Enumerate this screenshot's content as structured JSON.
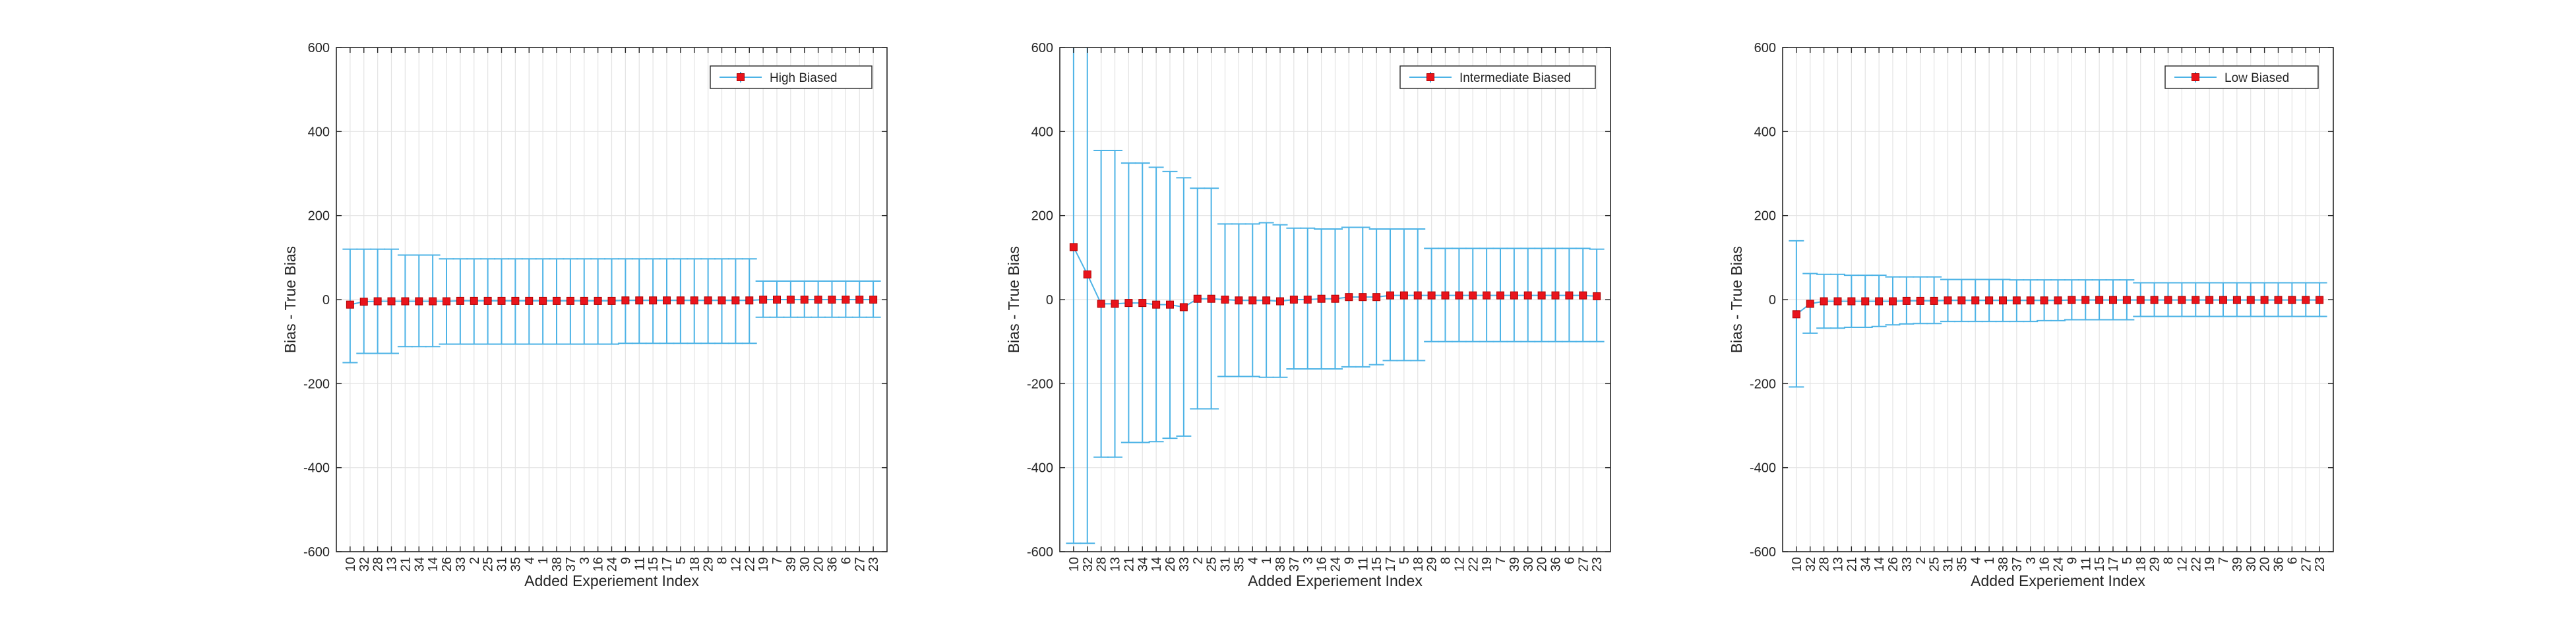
{
  "chart_data": [
    {
      "type": "scatter",
      "title": "",
      "xlabel": "Added Experiement Index",
      "ylabel": "Bias - True Bias",
      "ylim": [
        -600,
        600
      ],
      "yticks": [
        600,
        400,
        200,
        0,
        -200,
        -400,
        -600
      ],
      "grid": true,
      "legend_position": "top-right",
      "categories": [
        "10",
        "32",
        "28",
        "13",
        "21",
        "34",
        "14",
        "26",
        "33",
        "2",
        "25",
        "31",
        "35",
        "4",
        "1",
        "38",
        "37",
        "3",
        "16",
        "24",
        "9",
        "11",
        "15",
        "17",
        "5",
        "18",
        "29",
        "8",
        "12",
        "22",
        "19",
        "7",
        "39",
        "30",
        "20",
        "36",
        "6",
        "27",
        "23"
      ],
      "series": [
        {
          "name": "High Biased",
          "values": [
            -12,
            -5,
            -4,
            -4,
            -4,
            -4,
            -4,
            -4,
            -3,
            -3,
            -3,
            -3,
            -3,
            -3,
            -3,
            -3,
            -3,
            -3,
            -3,
            -3,
            -2,
            -2,
            -2,
            -2,
            -2,
            -2,
            -2,
            -2,
            -2,
            -2,
            0,
            0,
            0,
            0,
            0,
            0,
            0,
            0,
            0
          ],
          "err_upper": [
            120,
            120,
            120,
            120,
            106,
            106,
            106,
            97,
            97,
            97,
            97,
            97,
            97,
            97,
            97,
            97,
            97,
            97,
            97,
            97,
            97,
            97,
            97,
            97,
            97,
            97,
            97,
            97,
            97,
            97,
            44,
            44,
            44,
            44,
            44,
            44,
            44,
            44,
            44
          ],
          "err_lower": [
            -150,
            -128,
            -128,
            -128,
            -112,
            -112,
            -112,
            -106,
            -106,
            -106,
            -106,
            -106,
            -106,
            -106,
            -106,
            -106,
            -106,
            -106,
            -106,
            -106,
            -104,
            -104,
            -104,
            -104,
            -104,
            -104,
            -104,
            -104,
            -104,
            -104,
            -42,
            -42,
            -42,
            -42,
            -42,
            -42,
            -42,
            -42,
            -42
          ]
        }
      ]
    },
    {
      "type": "scatter",
      "title": "",
      "xlabel": "Added Experiement Index",
      "ylabel": "Bias - True Bias",
      "ylim": [
        -600,
        600
      ],
      "yticks": [
        600,
        400,
        200,
        0,
        -200,
        -400,
        -600
      ],
      "grid": true,
      "legend_position": "top-right",
      "categories": [
        "10",
        "32",
        "28",
        "13",
        "21",
        "34",
        "14",
        "26",
        "33",
        "2",
        "25",
        "31",
        "35",
        "4",
        "1",
        "38",
        "37",
        "3",
        "16",
        "24",
        "9",
        "11",
        "15",
        "17",
        "5",
        "18",
        "29",
        "8",
        "12",
        "22",
        "19",
        "7",
        "39",
        "30",
        "20",
        "36",
        "6",
        "27",
        "23"
      ],
      "series": [
        {
          "name": "Intermediate Biased",
          "values": [
            125,
            60,
            -10,
            -10,
            -8,
            -8,
            -12,
            -12,
            -18,
            2,
            2,
            0,
            -2,
            -2,
            -2,
            -4,
            0,
            0,
            2,
            2,
            6,
            6,
            6,
            10,
            10,
            10,
            10,
            10,
            10,
            10,
            10,
            10,
            10,
            10,
            10,
            10,
            10,
            10,
            8
          ],
          "err_upper": [
            600,
            600,
            355,
            355,
            325,
            325,
            315,
            305,
            290,
            265,
            265,
            180,
            180,
            180,
            183,
            178,
            170,
            170,
            168,
            168,
            172,
            172,
            168,
            168,
            168,
            168,
            122,
            122,
            122,
            122,
            122,
            122,
            122,
            122,
            122,
            122,
            122,
            122,
            120
          ],
          "err_lower": [
            -580,
            -580,
            -375,
            -375,
            -340,
            -340,
            -338,
            -330,
            -325,
            -260,
            -260,
            -183,
            -183,
            -183,
            -185,
            -185,
            -165,
            -165,
            -165,
            -165,
            -160,
            -160,
            -155,
            -145,
            -145,
            -145,
            -100,
            -100,
            -100,
            -100,
            -100,
            -100,
            -100,
            -100,
            -100,
            -100,
            -100,
            -100,
            -100
          ]
        }
      ]
    },
    {
      "type": "scatter",
      "title": "",
      "xlabel": "Added Experiement Index",
      "ylabel": "Bias - True Bias",
      "ylim": [
        -600,
        600
      ],
      "yticks": [
        600,
        400,
        200,
        0,
        -200,
        -400,
        -600
      ],
      "grid": true,
      "legend_position": "top-right",
      "categories": [
        "10",
        "32",
        "28",
        "13",
        "21",
        "34",
        "14",
        "26",
        "33",
        "2",
        "25",
        "31",
        "35",
        "4",
        "1",
        "38",
        "37",
        "3",
        "16",
        "24",
        "9",
        "11",
        "15",
        "17",
        "5",
        "18",
        "29",
        "8",
        "12",
        "22",
        "19",
        "7",
        "39",
        "30",
        "20",
        "36",
        "6",
        "27",
        "23"
      ],
      "series": [
        {
          "name": "Low Biased",
          "values": [
            -35,
            -10,
            -4,
            -4,
            -4,
            -4,
            -4,
            -4,
            -3,
            -3,
            -3,
            -2,
            -2,
            -2,
            -2,
            -2,
            -2,
            -2,
            -2,
            -2,
            -1,
            -1,
            -1,
            -1,
            -1,
            -1,
            -1,
            -1,
            -1,
            -1,
            -1,
            -1,
            -1,
            -1,
            -1,
            -1,
            -1,
            -1,
            -1
          ],
          "err_upper": [
            140,
            62,
            60,
            60,
            58,
            58,
            58,
            54,
            54,
            54,
            54,
            48,
            48,
            48,
            48,
            48,
            47,
            47,
            47,
            47,
            47,
            47,
            47,
            47,
            47,
            40,
            40,
            40,
            40,
            40,
            40,
            40,
            40,
            40,
            40,
            40,
            40,
            40,
            40
          ],
          "err_lower": [
            -208,
            -80,
            -68,
            -68,
            -66,
            -66,
            -64,
            -60,
            -58,
            -57,
            -57,
            -52,
            -52,
            -52,
            -52,
            -52,
            -52,
            -52,
            -50,
            -50,
            -48,
            -48,
            -48,
            -48,
            -48,
            -40,
            -40,
            -40,
            -40,
            -40,
            -40,
            -40,
            -40,
            -40,
            -40,
            -40,
            -40,
            -40,
            -40
          ]
        }
      ]
    }
  ],
  "colors": {
    "errorbar": "#4db3e6",
    "marker": "#e8141c",
    "marker_edge": "#b00000",
    "axis": "#262626",
    "grid": "#e3e3e3",
    "legend_border": "#262626"
  }
}
